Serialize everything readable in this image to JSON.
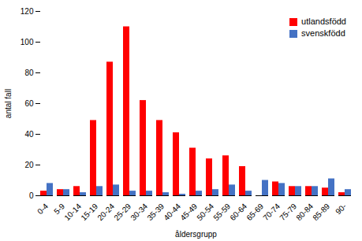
{
  "chart_data": {
    "type": "bar",
    "categories": [
      "0-4",
      "5-9",
      "10-14",
      "15-19",
      "20-24",
      "25-29",
      "30-34",
      "35-39",
      "40-44",
      "45-49",
      "50-54",
      "55-59",
      "60-64",
      "65-69",
      "70-74",
      "75-79",
      "80-84",
      "85-89",
      "90-"
    ],
    "series": [
      {
        "name": "utlandsfödd",
        "color": "#FF0000",
        "values": [
          3,
          4,
          6,
          49,
          87,
          110,
          62,
          49,
          41,
          31,
          24,
          26,
          19,
          0,
          9,
          6,
          6,
          5,
          2
        ]
      },
      {
        "name": "svenskfödd",
        "color": "#4472C4",
        "values": [
          8,
          4,
          2,
          6,
          7,
          3,
          3,
          2,
          1,
          3,
          4,
          7,
          3,
          10,
          8,
          6,
          6,
          11,
          4
        ]
      }
    ],
    "xlabel": "åldersgrupp",
    "ylabel": "antal fall",
    "ylim": [
      0,
      120
    ],
    "yticks": [
      0,
      20,
      40,
      60,
      80,
      100,
      120
    ],
    "legend": "upper right",
    "grid": false
  }
}
